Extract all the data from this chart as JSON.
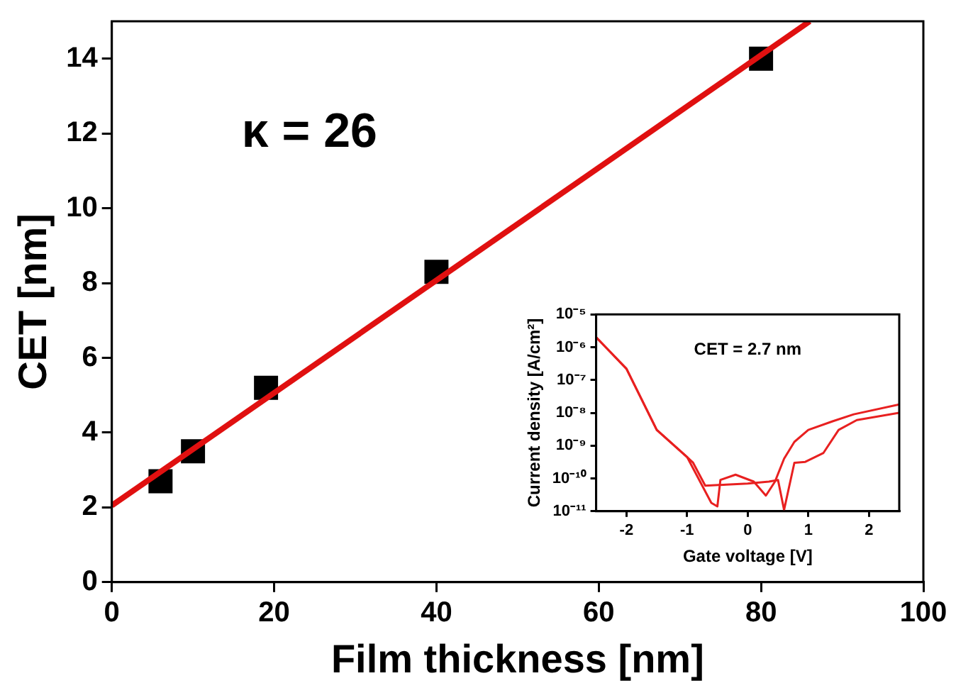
{
  "chart_data": [
    {
      "type": "scatter",
      "xlabel": "Film thickness [nm]",
      "ylabel": "CET [nm]",
      "annotations": [
        "κ = 26"
      ],
      "xlim": [
        0,
        100
      ],
      "xticks": [
        0,
        20,
        40,
        60,
        80,
        100
      ],
      "ylim": [
        0,
        15
      ],
      "yticks": [
        0,
        2,
        4,
        6,
        8,
        10,
        12,
        14
      ],
      "series": [
        {
          "type": "scatter",
          "color": "#000000",
          "marker": "square",
          "x": [
            6,
            10,
            19,
            40,
            80
          ],
          "values": [
            2.7,
            3.5,
            5.2,
            8.3,
            14
          ]
        },
        {
          "type": "line",
          "color": "#e01010",
          "marker": "none",
          "line_style": "solid",
          "x": [
            0,
            86
          ],
          "values": [
            2.05,
            15
          ]
        }
      ]
    },
    {
      "type": "line",
      "xlabel": "Gate voltage [V]",
      "ylabel": "Current density [A/cm²]",
      "annotations": [
        "CET = 2.7 nm"
      ],
      "log": "y",
      "xlim": [
        -2.5,
        2.5
      ],
      "xticks": [
        -2,
        -1,
        0,
        1,
        2
      ],
      "ylim": [
        1e-11,
        1e-05
      ],
      "yticks": [
        {
          "value": 1e-11,
          "label": "10⁻¹¹"
        },
        {
          "value": 1e-10,
          "label": "10⁻¹⁰"
        },
        {
          "value": 1e-09,
          "label": "10⁻⁹"
        },
        {
          "value": 1e-08,
          "label": "10⁻⁸"
        },
        {
          "value": 1e-07,
          "label": "10⁻⁷"
        },
        {
          "value": 1e-06,
          "label": "10⁻⁶"
        },
        {
          "value": 1e-05,
          "label": "10⁻⁵"
        }
      ],
      "series": [
        {
          "color": "#e82020",
          "marker": "none",
          "line_style": "solid",
          "x": [
            -2.5,
            -2,
            -1.5,
            -1,
            -0.6,
            -0.5,
            -0.45,
            -0.2,
            0.1,
            0.3,
            0.45,
            0.6,
            0.77,
            1,
            1.4,
            1.75,
            2.5
          ],
          "values": [
            2e-06,
            2.2e-07,
            3e-09,
            4.5e-10,
            1.8e-11,
            1.4e-11,
            9e-11,
            1.3e-10,
            8e-11,
            3e-11,
            8e-11,
            4e-10,
            1.3e-09,
            3e-09,
            5.5e-09,
            9e-09,
            1.8e-08
          ]
        },
        {
          "color": "#e82020",
          "marker": "none",
          "line_style": "solid",
          "x": [
            -2.5,
            -2,
            -1.5,
            -1,
            -0.9,
            -0.7,
            -0.35,
            0,
            0.35,
            0.5,
            0.6,
            0.77,
            0.95,
            1.25,
            1.5,
            1.8,
            2.5
          ],
          "values": [
            2e-06,
            2.2e-07,
            3e-09,
            4.5e-10,
            3e-10,
            6e-11,
            6.5e-11,
            7e-11,
            8e-11,
            9e-11,
            1.1e-11,
            3e-10,
            3.2e-10,
            6e-10,
            3e-09,
            6e-09,
            1e-08
          ]
        }
      ]
    }
  ]
}
